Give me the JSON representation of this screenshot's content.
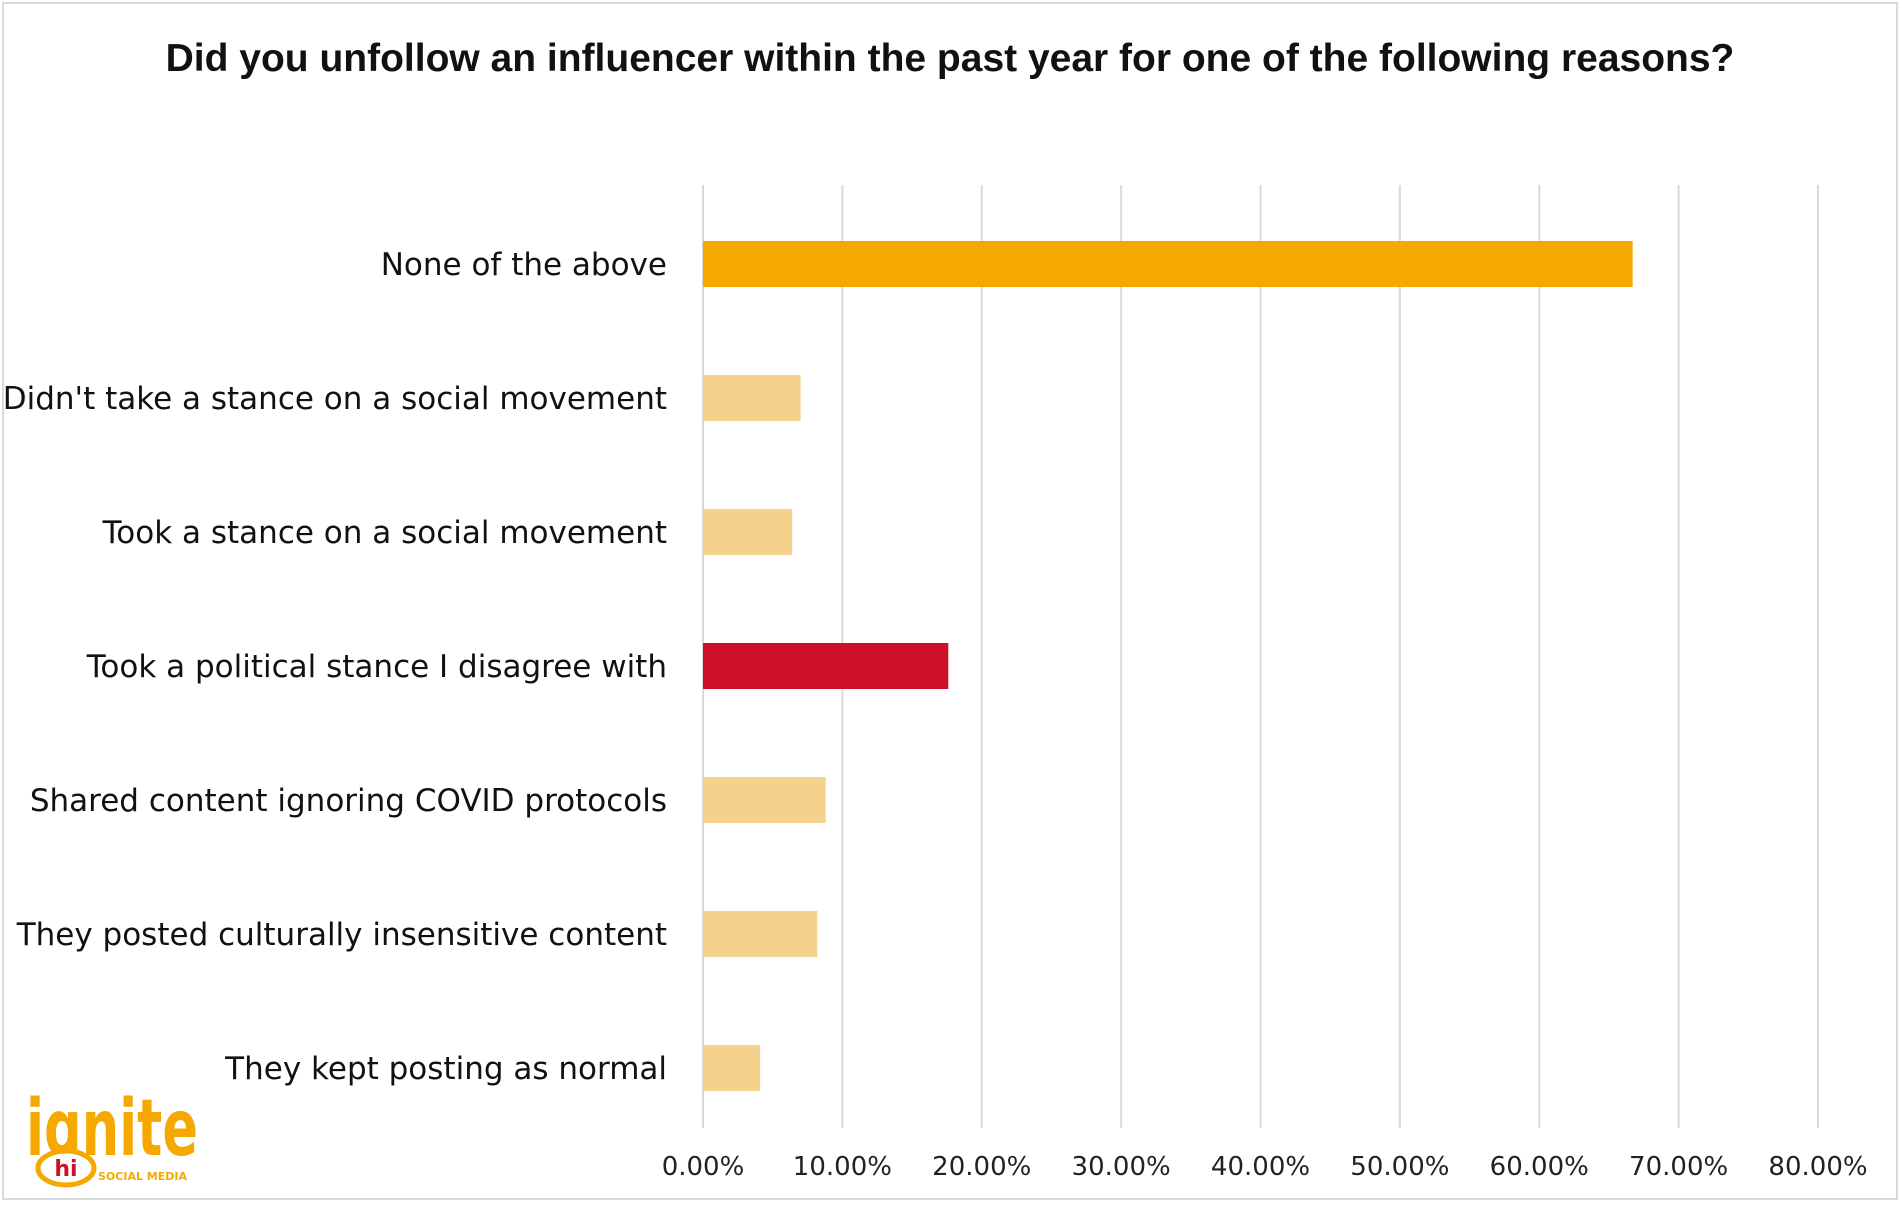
{
  "colors": {
    "highlight": "#F5A800",
    "highlight_alt": "#CC1128",
    "default_bar": "#F5D28C",
    "gridline": "#d9d9d9",
    "logo": "#F5A800"
  },
  "logo": {
    "wordmark": "ignite",
    "badge": "hi",
    "tagline": "SOCIAL MEDIA"
  },
  "chart_data": {
    "type": "bar",
    "orientation": "horizontal",
    "title": "Did you unfollow an influencer within the past year for one of the following reasons?",
    "categories": [
      "None of the above",
      "Didn't take a stance on a social movement",
      "Took a stance on a social movement",
      "Took a political stance I disagree with",
      "Shared content ignoring COVID protocols",
      "They posted culturally insensitive content",
      "They kept posting as normal"
    ],
    "values": [
      0.667,
      0.07,
      0.064,
      0.176,
      0.088,
      0.082,
      0.041
    ],
    "bar_colors": [
      "#F5A800",
      "#F5D28C",
      "#F5D28C",
      "#CC1128",
      "#F5D28C",
      "#F5D28C",
      "#F5D28C"
    ],
    "xlim": [
      0,
      0.8
    ],
    "xticks": [
      0,
      0.1,
      0.2,
      0.3,
      0.4,
      0.5,
      0.6,
      0.7,
      0.8
    ],
    "xtick_labels": [
      "0.00%",
      "10.00%",
      "20.00%",
      "30.00%",
      "40.00%",
      "50.00%",
      "60.00%",
      "70.00%",
      "80.00%"
    ],
    "grid": "vertical",
    "legend": "none"
  }
}
